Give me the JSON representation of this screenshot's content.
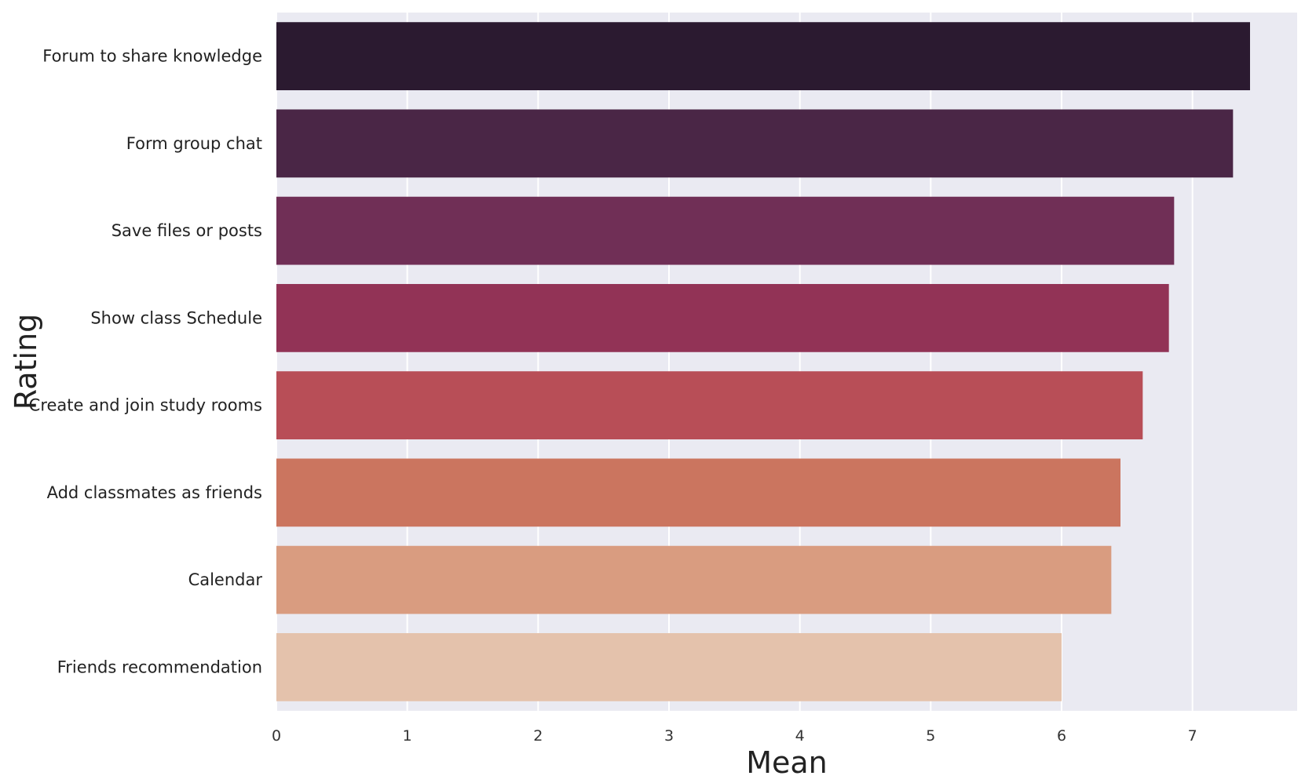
{
  "chart_data": {
    "type": "bar",
    "orientation": "horizontal",
    "xlabel": "Mean",
    "ylabel": "Rating",
    "xlim": [
      0,
      7.8
    ],
    "xticks": [
      0,
      1,
      2,
      3,
      4,
      5,
      6,
      7
    ],
    "grid": true,
    "categories": [
      "Forum to share knowledge",
      "Form group chat",
      "Save files or posts",
      "Show class Schedule",
      "Create and join study rooms",
      "Add classmates as friends",
      "Calendar",
      "Friends recommendation"
    ],
    "values": [
      7.44,
      7.31,
      6.86,
      6.82,
      6.62,
      6.45,
      6.38,
      6.0
    ],
    "colors": [
      "#2b1a30",
      "#4a2646",
      "#702f56",
      "#923356",
      "#b84e57",
      "#cb755f",
      "#d99c80",
      "#e4c2ac"
    ],
    "background": "#eaeaf2"
  }
}
